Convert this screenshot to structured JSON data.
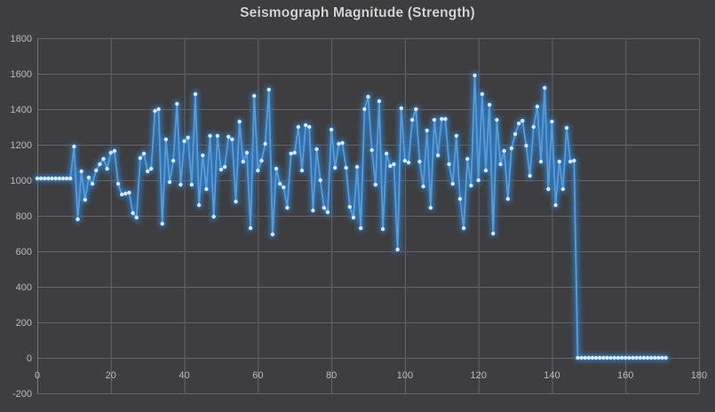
{
  "chart": {
    "title": "Seismograph Magnitude (Strength)",
    "title_color": "#d4d4d4",
    "background_color": "#3e3e40",
    "gridline_color": "#65656a",
    "axis_line_color": "#737378",
    "tick_label_color": "#bcbcbc",
    "line_color": "#5b9bd5",
    "line_glow_color": "#2e75b6",
    "marker_color": "#d7e8f7"
  },
  "chart_data": {
    "type": "line",
    "title": "Seismograph Magnitude (Strength)",
    "xlabel": "",
    "ylabel": "",
    "legend": false,
    "grid": true,
    "marker": "circle-glow",
    "x_range": [
      0,
      180
    ],
    "x_tick_step": 20,
    "x_tick_labels": [
      "0",
      "20",
      "40",
      "60",
      "80",
      "100",
      "120",
      "140",
      "160",
      "180"
    ],
    "y_range": [
      -200,
      1800
    ],
    "y_tick_step": 200,
    "y_tick_labels": [
      "1800",
      "1600",
      "1400",
      "1200",
      "1000",
      "800",
      "600",
      "400",
      "200",
      "0",
      "-200"
    ],
    "x_start": 0,
    "x_step": 1,
    "values": [
      1010,
      1010,
      1010,
      1010,
      1010,
      1010,
      1010,
      1010,
      1010,
      1010,
      1190,
      780,
      1050,
      890,
      1015,
      980,
      1055,
      1090,
      1120,
      1065,
      1155,
      1165,
      980,
      920,
      925,
      930,
      815,
      790,
      1125,
      1150,
      1050,
      1065,
      1390,
      1400,
      755,
      1230,
      990,
      1110,
      1430,
      975,
      1220,
      1240,
      975,
      1485,
      860,
      1140,
      950,
      1250,
      795,
      1250,
      1060,
      1075,
      1245,
      1230,
      880,
      1330,
      1105,
      1155,
      730,
      1475,
      1055,
      1110,
      1205,
      1510,
      695,
      1065,
      980,
      960,
      845,
      1150,
      1155,
      1300,
      1055,
      1310,
      1300,
      830,
      1175,
      1000,
      845,
      820,
      1285,
      1070,
      1205,
      1210,
      1070,
      850,
      790,
      1075,
      730,
      1400,
      1470,
      1170,
      975,
      1445,
      725,
      1150,
      1080,
      1090,
      610,
      1405,
      1110,
      1100,
      1340,
      1400,
      1105,
      965,
      1280,
      845,
      1340,
      1140,
      1345,
      1345,
      1090,
      980,
      1250,
      895,
      730,
      1120,
      970,
      1590,
      1000,
      1485,
      1055,
      1425,
      700,
      1340,
      1090,
      1165,
      895,
      1180,
      1260,
      1320,
      1335,
      1195,
      1025,
      1300,
      1415,
      1105,
      1520,
      950,
      1330,
      860,
      1105,
      950,
      1295,
      1105,
      1110,
      0,
      0,
      0,
      0,
      0,
      0,
      0,
      0,
      0,
      0,
      0,
      0,
      0,
      0,
      0,
      0,
      0,
      0,
      0,
      0,
      0,
      0,
      0,
      0,
      0
    ]
  }
}
